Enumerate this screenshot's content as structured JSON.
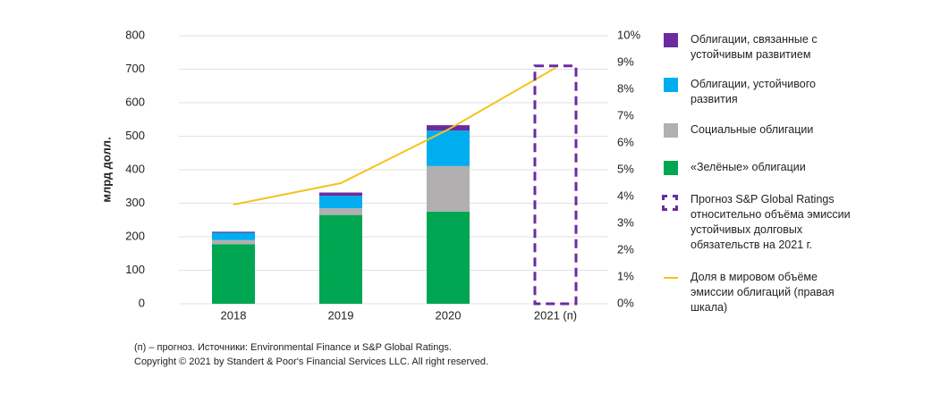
{
  "chart_data": {
    "type": "bar",
    "stacked": true,
    "y_label": "млрд долл.",
    "categories": [
      "2018",
      "2019",
      "2020",
      "2021 (п)"
    ],
    "ylim": [
      0,
      800
    ],
    "yticks": [
      0,
      100,
      200,
      300,
      400,
      500,
      600,
      700,
      800
    ],
    "y2lim": [
      0,
      10
    ],
    "y2ticks": [
      {
        "value": 0,
        "label": "0%"
      },
      {
        "value": 1,
        "label": "1%"
      },
      {
        "value": 2,
        "label": "2%"
      },
      {
        "value": 3,
        "label": "3%"
      },
      {
        "value": 4,
        "label": "4%"
      },
      {
        "value": 5,
        "label": "5%"
      },
      {
        "value": 6,
        "label": "6%"
      },
      {
        "value": 7,
        "label": "7%"
      },
      {
        "value": 8,
        "label": "8%"
      },
      {
        "value": 9,
        "label": "9%"
      },
      {
        "value": 10,
        "label": "10%"
      }
    ],
    "grid": true,
    "series": [
      {
        "name": "«Зелёные» облигации",
        "color": "#00a651",
        "values": [
          178,
          265,
          275,
          null
        ]
      },
      {
        "name": "Социальные облигации",
        "color": "#b1afb0",
        "values": [
          12,
          20,
          136,
          null
        ]
      },
      {
        "name": "Облигации, устойчивого развития",
        "color": "#00aeef",
        "values": [
          22,
          37,
          106,
          null
        ]
      },
      {
        "name": "Облигации, связанные с устойчивым развитием",
        "color": "#6a2c9f",
        "values": [
          3,
          10,
          16,
          null
        ]
      },
      {
        "name": "Доля в мировом объёме эмиссии облигаций (правая шкала)",
        "type": "line",
        "axis": "y2",
        "color": "#f4c41c",
        "values": [
          3.7,
          4.5,
          6.5,
          8.8
        ]
      }
    ],
    "forecast": {
      "name": "Прогноз S&P Global Ratings относительно объёма эмиссии устойчивых долговых обязательств на 2021 г.",
      "color": "#6a2c9f",
      "values": [
        null,
        null,
        null,
        710
      ]
    },
    "footnotes": [
      "(п) – прогноз. Источники: Environmental Finance и S&P Global Ratings.",
      "Copyright © 2021 by Standert & Poor's Financial  Services LLC. All right reserved."
    ]
  }
}
